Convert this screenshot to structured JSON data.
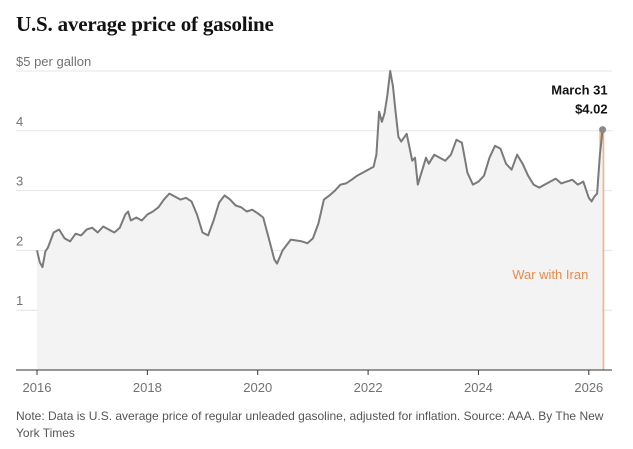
{
  "colors": {
    "line": "#7a7a7a",
    "area": "#f3f3f3",
    "grid": "#e4e4e4",
    "axis": "#333333",
    "marker": "#8a8a8a",
    "event_band": "#f2b58a",
    "event_text": "#e88a4c"
  },
  "chart_data": {
    "type": "area",
    "title": "U.S. average price of gasoline",
    "ylabel": "$5 per gallon",
    "xlabel": "",
    "ylim": [
      0,
      5
    ],
    "xlim": [
      2016.0,
      2026.42
    ],
    "y_ticks": [
      {
        "value": 5,
        "label": "$5 per gallon"
      },
      {
        "value": 4,
        "label": "4"
      },
      {
        "value": 3,
        "label": "3"
      },
      {
        "value": 2,
        "label": "2"
      },
      {
        "value": 1,
        "label": "1"
      }
    ],
    "x_ticks": [
      {
        "value": 2016,
        "label": "2016"
      },
      {
        "value": 2018,
        "label": "2018"
      },
      {
        "value": 2020,
        "label": "2020"
      },
      {
        "value": 2022,
        "label": "2022"
      },
      {
        "value": 2024,
        "label": "2024"
      },
      {
        "value": 2026,
        "label": "2026"
      }
    ],
    "series": [
      {
        "name": "Average price of regular unleaded gasoline (inflation-adjusted)",
        "x": [
          2016.0,
          2016.05,
          2016.1,
          2016.15,
          2016.2,
          2016.3,
          2016.4,
          2016.5,
          2016.6,
          2016.7,
          2016.8,
          2016.9,
          2017.0,
          2017.1,
          2017.2,
          2017.3,
          2017.4,
          2017.5,
          2017.6,
          2017.65,
          2017.7,
          2017.8,
          2017.9,
          2018.0,
          2018.1,
          2018.2,
          2018.3,
          2018.4,
          2018.5,
          2018.6,
          2018.7,
          2018.8,
          2018.9,
          2019.0,
          2019.1,
          2019.2,
          2019.3,
          2019.4,
          2019.5,
          2019.6,
          2019.7,
          2019.8,
          2019.9,
          2020.0,
          2020.1,
          2020.2,
          2020.3,
          2020.35,
          2020.45,
          2020.6,
          2020.8,
          2020.9,
          2021.0,
          2021.1,
          2021.2,
          2021.3,
          2021.4,
          2021.5,
          2021.6,
          2021.7,
          2021.8,
          2021.9,
          2022.0,
          2022.1,
          2022.15,
          2022.2,
          2022.25,
          2022.3,
          2022.35,
          2022.4,
          2022.45,
          2022.5,
          2022.55,
          2022.6,
          2022.7,
          2022.8,
          2022.85,
          2022.9,
          2022.95,
          2023.0,
          2023.05,
          2023.1,
          2023.2,
          2023.3,
          2023.4,
          2023.5,
          2023.6,
          2023.7,
          2023.75,
          2023.8,
          2023.9,
          2024.0,
          2024.1,
          2024.2,
          2024.3,
          2024.4,
          2024.5,
          2024.6,
          2024.7,
          2024.8,
          2024.9,
          2025.0,
          2025.1,
          2025.2,
          2025.3,
          2025.4,
          2025.5,
          2025.6,
          2025.7,
          2025.8,
          2025.9,
          2026.0,
          2026.05,
          2026.1,
          2026.15,
          2026.2,
          2026.25
        ],
        "values": [
          2.0,
          1.8,
          1.72,
          1.98,
          2.05,
          2.3,
          2.35,
          2.2,
          2.15,
          2.28,
          2.25,
          2.35,
          2.38,
          2.3,
          2.4,
          2.35,
          2.3,
          2.38,
          2.6,
          2.65,
          2.5,
          2.55,
          2.5,
          2.6,
          2.65,
          2.72,
          2.85,
          2.95,
          2.9,
          2.85,
          2.88,
          2.82,
          2.6,
          2.3,
          2.25,
          2.5,
          2.8,
          2.92,
          2.85,
          2.75,
          2.72,
          2.65,
          2.68,
          2.62,
          2.55,
          2.2,
          1.85,
          1.78,
          2.0,
          2.18,
          2.15,
          2.12,
          2.2,
          2.45,
          2.85,
          2.92,
          3.0,
          3.1,
          3.12,
          3.18,
          3.25,
          3.3,
          3.35,
          3.4,
          3.6,
          4.32,
          4.15,
          4.3,
          4.6,
          5.0,
          4.75,
          4.3,
          3.9,
          3.82,
          3.95,
          3.5,
          3.55,
          3.1,
          3.25,
          3.4,
          3.55,
          3.45,
          3.6,
          3.55,
          3.5,
          3.6,
          3.85,
          3.8,
          3.55,
          3.3,
          3.1,
          3.15,
          3.25,
          3.55,
          3.75,
          3.7,
          3.45,
          3.35,
          3.6,
          3.45,
          3.25,
          3.1,
          3.05,
          3.1,
          3.15,
          3.2,
          3.12,
          3.15,
          3.18,
          3.1,
          3.15,
          2.88,
          2.82,
          2.9,
          2.95,
          3.6,
          4.02
        ]
      }
    ],
    "annotations": {
      "endpoint": {
        "x": 2026.25,
        "y": 4.02,
        "date": "March 31",
        "value": "$4.02"
      },
      "event": {
        "label": "War with Iran",
        "x_start": 2026.19,
        "x_end": 2026.28
      }
    }
  },
  "note": "Note: Data is U.S. average price of regular unleaded gasoline, adjusted for inflation.  Source: AAA.  By The New York Times"
}
